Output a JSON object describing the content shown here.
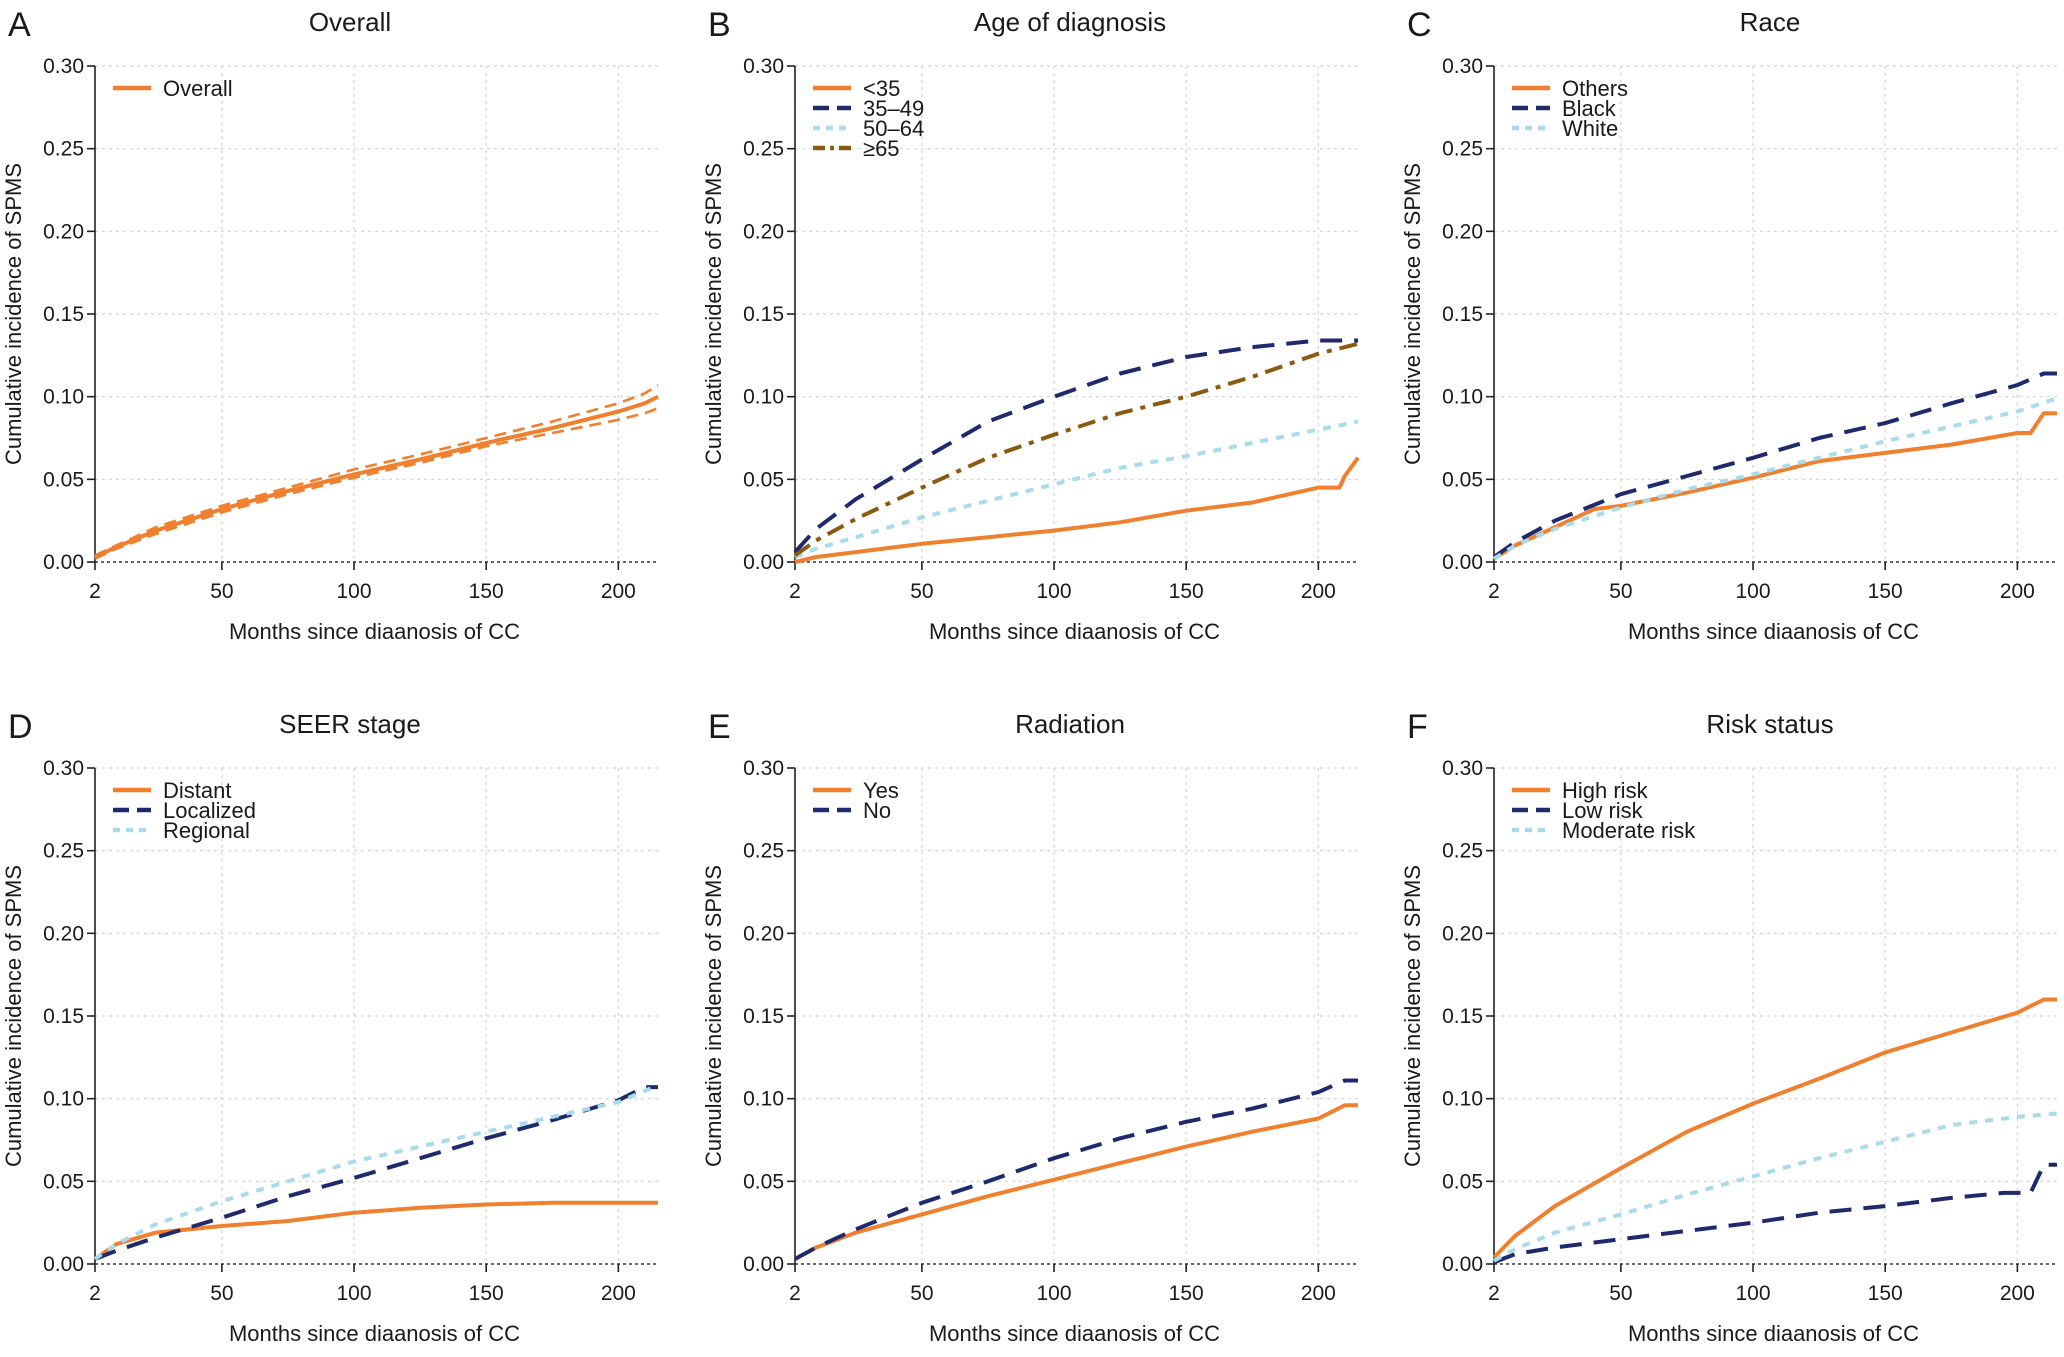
{
  "chart_data": [
    {
      "type": "line",
      "panel": "A",
      "title": "Overall",
      "xlabel": "Months since diaanosis of CC",
      "ylabel": "Cumulative incidence of SPMS",
      "xlim": [
        2,
        215
      ],
      "ylim": [
        0,
        0.3
      ],
      "x_ticks": [
        "2",
        "50",
        "100",
        "150",
        "200"
      ],
      "y_ticks": [
        "0.00",
        "0.05",
        "0.10",
        "0.15",
        "0.20",
        "0.25",
        "0.30"
      ],
      "grid": true,
      "legend_position": "top-left",
      "series": [
        {
          "name": "Overall",
          "color": "#f07f2e",
          "dash": "solid",
          "x": [
            2,
            10,
            25,
            50,
            75,
            100,
            125,
            150,
            175,
            200,
            210,
            215
          ],
          "y": [
            0.003,
            0.009,
            0.019,
            0.032,
            0.043,
            0.053,
            0.062,
            0.072,
            0.081,
            0.091,
            0.096,
            0.1
          ],
          "ci_lower": [
            0.002,
            0.008,
            0.017,
            0.03,
            0.041,
            0.051,
            0.06,
            0.07,
            0.078,
            0.086,
            0.09,
            0.093
          ],
          "ci_upper": [
            0.004,
            0.01,
            0.021,
            0.034,
            0.045,
            0.056,
            0.065,
            0.075,
            0.085,
            0.096,
            0.102,
            0.107
          ]
        }
      ]
    },
    {
      "type": "line",
      "panel": "B",
      "title": "Age of diagnosis",
      "xlabel": "Months since diaanosis of CC",
      "ylabel": "Cumulative incidence of SPMS",
      "xlim": [
        2,
        215
      ],
      "ylim": [
        0,
        0.3
      ],
      "x_ticks": [
        "2",
        "50",
        "100",
        "150",
        "200"
      ],
      "y_ticks": [
        "0.00",
        "0.05",
        "0.10",
        "0.15",
        "0.20",
        "0.25",
        "0.30"
      ],
      "grid": true,
      "legend_position": "top-left",
      "series": [
        {
          "name": "<35",
          "color": "#f07f2e",
          "dash": "solid",
          "x": [
            2,
            10,
            25,
            50,
            75,
            100,
            125,
            150,
            175,
            200,
            208,
            210,
            215
          ],
          "y": [
            0.0,
            0.003,
            0.006,
            0.011,
            0.015,
            0.019,
            0.024,
            0.031,
            0.036,
            0.045,
            0.045,
            0.052,
            0.063
          ]
        },
        {
          "name": "35–49",
          "color": "#1f2a6d",
          "dash": "longdash",
          "x": [
            2,
            10,
            25,
            50,
            75,
            100,
            125,
            150,
            175,
            200,
            215
          ],
          "y": [
            0.006,
            0.02,
            0.038,
            0.062,
            0.085,
            0.1,
            0.114,
            0.124,
            0.13,
            0.134,
            0.134
          ]
        },
        {
          "name": "50–64",
          "color": "#a9dbeb",
          "dash": "dotted",
          "x": [
            2,
            10,
            25,
            50,
            75,
            100,
            125,
            150,
            175,
            200,
            215
          ],
          "y": [
            0.003,
            0.008,
            0.015,
            0.027,
            0.037,
            0.047,
            0.057,
            0.064,
            0.072,
            0.08,
            0.085
          ]
        },
        {
          "name": "≥65",
          "color": "#8a5a12",
          "dash": "dashdot",
          "x": [
            2,
            10,
            25,
            50,
            75,
            100,
            125,
            150,
            175,
            200,
            215
          ],
          "y": [
            0.004,
            0.013,
            0.026,
            0.045,
            0.063,
            0.077,
            0.09,
            0.1,
            0.112,
            0.126,
            0.132
          ]
        }
      ]
    },
    {
      "type": "line",
      "panel": "C",
      "title": "Race",
      "xlabel": "Months since diaanosis of CC",
      "ylabel": "Cumulative incidence of SPMS",
      "xlim": [
        2,
        215
      ],
      "ylim": [
        0,
        0.3
      ],
      "x_ticks": [
        "2",
        "50",
        "100",
        "150",
        "200"
      ],
      "y_ticks": [
        "0.00",
        "0.05",
        "0.10",
        "0.15",
        "0.20",
        "0.25",
        "0.30"
      ],
      "grid": true,
      "legend_position": "top-left",
      "series": [
        {
          "name": "Others",
          "color": "#f07f2e",
          "dash": "solid",
          "x": [
            2,
            10,
            25,
            40,
            50,
            75,
            100,
            125,
            150,
            175,
            200,
            205,
            210,
            215
          ],
          "y": [
            0.002,
            0.01,
            0.021,
            0.032,
            0.034,
            0.042,
            0.051,
            0.061,
            0.066,
            0.071,
            0.078,
            0.078,
            0.09,
            0.09
          ]
        },
        {
          "name": "Black",
          "color": "#1f2a6d",
          "dash": "longdash",
          "x": [
            2,
            10,
            25,
            50,
            75,
            100,
            125,
            150,
            175,
            200,
            210,
            215
          ],
          "y": [
            0.003,
            0.012,
            0.025,
            0.041,
            0.052,
            0.063,
            0.075,
            0.084,
            0.096,
            0.107,
            0.114,
            0.114
          ]
        },
        {
          "name": "White",
          "color": "#a9dbeb",
          "dash": "dotted",
          "x": [
            2,
            10,
            25,
            50,
            75,
            100,
            125,
            150,
            175,
            200,
            215
          ],
          "y": [
            0.002,
            0.01,
            0.02,
            0.033,
            0.044,
            0.053,
            0.063,
            0.073,
            0.082,
            0.091,
            0.099
          ]
        }
      ]
    },
    {
      "type": "line",
      "panel": "D",
      "title": "SEER stage",
      "xlabel": "Months since diaanosis of CC",
      "ylabel": "Cumulative incidence of SPMS",
      "xlim": [
        2,
        215
      ],
      "ylim": [
        0,
        0.3
      ],
      "x_ticks": [
        "2",
        "50",
        "100",
        "150",
        "200"
      ],
      "y_ticks": [
        "0.00",
        "0.05",
        "0.10",
        "0.15",
        "0.20",
        "0.25",
        "0.30"
      ],
      "grid": true,
      "legend_position": "top-left",
      "series": [
        {
          "name": "Distant",
          "color": "#f07f2e",
          "dash": "solid",
          "x": [
            2,
            10,
            25,
            50,
            75,
            100,
            125,
            150,
            175,
            200,
            215
          ],
          "y": [
            0.003,
            0.012,
            0.019,
            0.023,
            0.026,
            0.031,
            0.034,
            0.036,
            0.037,
            0.037,
            0.037
          ]
        },
        {
          "name": "Localized",
          "color": "#1f2a6d",
          "dash": "longdash",
          "x": [
            2,
            10,
            25,
            50,
            75,
            100,
            125,
            150,
            175,
            200,
            210,
            215
          ],
          "y": [
            0.003,
            0.008,
            0.016,
            0.028,
            0.041,
            0.052,
            0.064,
            0.076,
            0.087,
            0.099,
            0.107,
            0.107
          ]
        },
        {
          "name": "Regional",
          "color": "#a9dbeb",
          "dash": "dotted",
          "x": [
            2,
            10,
            25,
            50,
            75,
            100,
            125,
            150,
            175,
            200,
            215
          ],
          "y": [
            0.003,
            0.012,
            0.024,
            0.038,
            0.05,
            0.062,
            0.071,
            0.08,
            0.089,
            0.098,
            0.108
          ]
        }
      ]
    },
    {
      "type": "line",
      "panel": "E",
      "title": "Radiation",
      "xlabel": "Months since diaanosis of CC",
      "ylabel": "Cumulative incidence of SPMS",
      "xlim": [
        2,
        215
      ],
      "ylim": [
        0,
        0.3
      ],
      "x_ticks": [
        "2",
        "50",
        "100",
        "150",
        "200"
      ],
      "y_ticks": [
        "0.00",
        "0.05",
        "0.10",
        "0.15",
        "0.20",
        "0.25",
        "0.30"
      ],
      "grid": true,
      "legend_position": "top-left",
      "series": [
        {
          "name": "Yes",
          "color": "#f07f2e",
          "dash": "solid",
          "x": [
            2,
            10,
            25,
            50,
            75,
            100,
            125,
            150,
            175,
            200,
            210,
            215
          ],
          "y": [
            0.003,
            0.01,
            0.019,
            0.03,
            0.041,
            0.051,
            0.061,
            0.071,
            0.08,
            0.088,
            0.096,
            0.096
          ]
        },
        {
          "name": "No",
          "color": "#1f2a6d",
          "dash": "longdash",
          "x": [
            2,
            10,
            25,
            50,
            75,
            100,
            125,
            150,
            175,
            200,
            210,
            215
          ],
          "y": [
            0.003,
            0.01,
            0.021,
            0.037,
            0.05,
            0.064,
            0.076,
            0.086,
            0.094,
            0.104,
            0.111,
            0.111
          ]
        }
      ]
    },
    {
      "type": "line",
      "panel": "F",
      "title": "Risk status",
      "xlabel": "Months since diaanosis of CC",
      "ylabel": "Cumulative incidence of SPMS",
      "xlim": [
        2,
        215
      ],
      "ylim": [
        0,
        0.3
      ],
      "x_ticks": [
        "2",
        "50",
        "100",
        "150",
        "200"
      ],
      "y_ticks": [
        "0.00",
        "0.05",
        "0.10",
        "0.15",
        "0.20",
        "0.25",
        "0.30"
      ],
      "grid": true,
      "legend_position": "top-left",
      "series": [
        {
          "name": "High risk",
          "color": "#f07f2e",
          "dash": "solid",
          "x": [
            2,
            10,
            25,
            50,
            75,
            100,
            125,
            150,
            175,
            200,
            210,
            215
          ],
          "y": [
            0.004,
            0.017,
            0.035,
            0.058,
            0.08,
            0.097,
            0.112,
            0.128,
            0.14,
            0.152,
            0.16,
            0.16
          ]
        },
        {
          "name": "Low risk",
          "color": "#1f2a6d",
          "dash": "longdash",
          "x": [
            2,
            10,
            25,
            50,
            75,
            100,
            125,
            150,
            175,
            195,
            205,
            210,
            215
          ],
          "y": [
            0.001,
            0.006,
            0.01,
            0.015,
            0.02,
            0.025,
            0.031,
            0.035,
            0.04,
            0.043,
            0.043,
            0.06,
            0.06
          ]
        },
        {
          "name": "Moderate risk",
          "color": "#a9dbeb",
          "dash": "dotted",
          "x": [
            2,
            10,
            25,
            50,
            75,
            100,
            125,
            150,
            175,
            200,
            215
          ],
          "y": [
            0.002,
            0.009,
            0.019,
            0.03,
            0.042,
            0.053,
            0.064,
            0.074,
            0.084,
            0.089,
            0.091
          ]
        }
      ]
    }
  ]
}
